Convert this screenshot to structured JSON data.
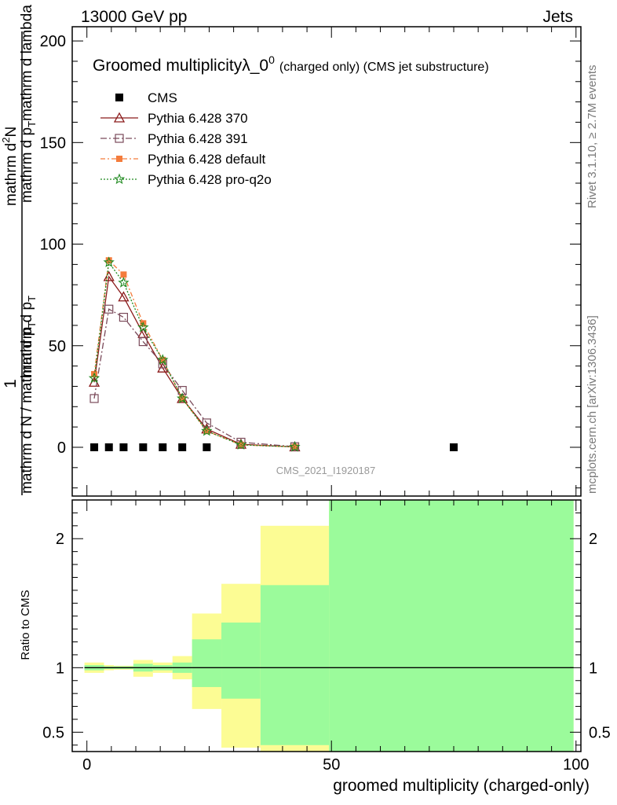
{
  "chart_data": [
    {
      "type": "line",
      "header_left": "13000 GeV pp",
      "header_right": "Jets",
      "title_main": "Groomed multiplicityλ_0",
      "title_sup": "0",
      "title_rest": "(charged only) (CMS jet substructure)",
      "ylabel_num": "1",
      "ylabel_denom": "mathrm d N / mathrm d p",
      "ylabel_num2": "mathrm d",
      "ylabel_num3": "N",
      "ylabel_num4": "mathrm d p",
      "ylabel_num5": "mathrm d lambda",
      "ylabel_sub_T": "T",
      "ylabel_sup_2": "2",
      "watermark": "CMS_2021_I1920187",
      "side_top": "Rivet 3.1.10, ≥ 2.7M events",
      "side_bottom": "mcplots.cern.ch [arXiv:1306.3436]",
      "xlim": [
        -3,
        101
      ],
      "ylim": [
        -24,
        207
      ],
      "yticks": [
        0,
        50,
        100,
        150,
        200
      ],
      "series": [
        {
          "name": "CMS",
          "color": "#000000",
          "marker": "square",
          "x": [
            1.5,
            4.5,
            7.5,
            11.5,
            15.5,
            19.5,
            24.5,
            75
          ],
          "y": [
            0,
            0,
            0,
            0,
            0,
            0,
            0,
            0
          ]
        },
        {
          "name": "Pythia 6.428 370",
          "color": "#8b1a1a",
          "marker": "triangle-open",
          "dash": "",
          "x": [
            1.5,
            4.5,
            7.5,
            11.5,
            15.5,
            19.5,
            24.5,
            31.5,
            42.5
          ],
          "y": [
            32,
            84,
            74,
            56,
            39,
            24,
            9,
            1.5,
            0.2
          ]
        },
        {
          "name": "Pythia 6.428 391",
          "color": "#7a4a5a",
          "marker": "square-open",
          "dash": "8,3,2,3",
          "x": [
            1.5,
            4.5,
            7.5,
            11.5,
            15.5,
            19.5,
            24.5,
            31.5,
            42.5
          ],
          "y": [
            24,
            68,
            64,
            52,
            41,
            28,
            12,
            2.5,
            0.3
          ]
        },
        {
          "name": "Pythia 6.428 default",
          "color": "#f47c3c",
          "marker": "square-filled",
          "dash": "6,3,2,3",
          "x": [
            1.5,
            4.5,
            7.5,
            11.5,
            15.5,
            19.5,
            24.5,
            31.5,
            42.5
          ],
          "y": [
            36,
            92,
            85,
            61,
            43,
            24,
            8,
            1.2,
            0.2
          ]
        },
        {
          "name": "Pythia 6.428 pro-q2o",
          "color": "#1f8a1f",
          "marker": "star",
          "dash": "2,2",
          "x": [
            1.5,
            4.5,
            7.5,
            11.5,
            15.5,
            19.5,
            24.5,
            31.5,
            42.5
          ],
          "y": [
            34,
            91,
            81,
            59,
            43,
            24,
            8,
            1.2,
            0.2
          ]
        }
      ]
    },
    {
      "type": "area",
      "ylabel": "Ratio to CMS",
      "xlabel": "groomed multiplicity (charged-only)",
      "xlim": [
        -3,
        101
      ],
      "ylim": [
        0.35,
        2.3
      ],
      "yticks": [
        0.5,
        1,
        2
      ],
      "xticks": [
        0,
        50,
        100
      ],
      "bands": [
        {
          "x0": -0.5,
          "x1": 3.5,
          "g_lo": 0.98,
          "g_hi": 1.02,
          "y_lo": 0.96,
          "y_hi": 1.04
        },
        {
          "x0": 3.5,
          "x1": 5.5,
          "g_lo": 0.99,
          "g_hi": 1.01,
          "y_lo": 0.98,
          "y_hi": 1.02
        },
        {
          "x0": 5.5,
          "x1": 9.5,
          "g_lo": 0.99,
          "g_hi": 1.01,
          "y_lo": 0.985,
          "y_hi": 1.015
        },
        {
          "x0": 9.5,
          "x1": 13.5,
          "g_lo": 0.97,
          "g_hi": 1.03,
          "y_lo": 0.93,
          "y_hi": 1.06
        },
        {
          "x0": 13.5,
          "x1": 17.5,
          "g_lo": 0.98,
          "g_hi": 1.02,
          "y_lo": 0.96,
          "y_hi": 1.04
        },
        {
          "x0": 17.5,
          "x1": 21.5,
          "g_lo": 0.96,
          "g_hi": 1.04,
          "y_lo": 0.91,
          "y_hi": 1.09
        },
        {
          "x0": 21.5,
          "x1": 27.5,
          "g_lo": 0.85,
          "g_hi": 1.22,
          "y_lo": 0.68,
          "y_hi": 1.42
        },
        {
          "x0": 27.5,
          "x1": 35.5,
          "g_lo": 0.76,
          "g_hi": 1.35,
          "y_lo": 0.38,
          "y_hi": 1.65
        },
        {
          "x0": 35.5,
          "x1": 49.5,
          "g_lo": 0.4,
          "g_hi": 1.64,
          "y_lo": 0.3,
          "y_hi": 2.1
        },
        {
          "x0": 49.5,
          "x1": 99.5,
          "g_lo": 0.3,
          "g_hi": 2.4,
          "y_lo": 0.3,
          "y_hi": 2.4
        }
      ]
    }
  ]
}
